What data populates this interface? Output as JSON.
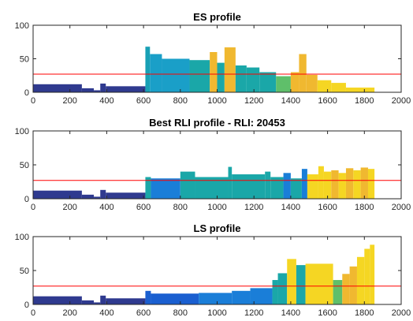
{
  "chart_data": [
    {
      "type": "area",
      "title": "ES profile",
      "xlim": [
        0,
        2000
      ],
      "ylim": [
        0,
        100
      ],
      "xticks": [
        "0",
        "200",
        "400",
        "600",
        "800",
        "1000",
        "1200",
        "1400",
        "1600",
        "1800",
        "2000"
      ],
      "yticks": [
        "0",
        "50",
        "100"
      ],
      "reference_line": {
        "y": 27,
        "color": "#ff0000"
      },
      "bars": [
        {
          "x0": 0,
          "x1": 265,
          "y": 12,
          "color": "#2f3a8f"
        },
        {
          "x0": 265,
          "x1": 330,
          "y": 6,
          "color": "#2f3a8f"
        },
        {
          "x0": 330,
          "x1": 365,
          "y": 3,
          "color": "#2f3a8f"
        },
        {
          "x0": 365,
          "x1": 395,
          "y": 13,
          "color": "#2f3a8f"
        },
        {
          "x0": 395,
          "x1": 610,
          "y": 9,
          "color": "#2f3a8f"
        },
        {
          "x0": 610,
          "x1": 635,
          "y": 68,
          "color": "#18a0b5"
        },
        {
          "x0": 635,
          "x1": 700,
          "y": 57,
          "color": "#1a9fc8"
        },
        {
          "x0": 700,
          "x1": 850,
          "y": 50,
          "color": "#1a9fc8"
        },
        {
          "x0": 850,
          "x1": 960,
          "y": 48,
          "color": "#1aa7a8"
        },
        {
          "x0": 960,
          "x1": 1000,
          "y": 60,
          "color": "#f0b830"
        },
        {
          "x0": 1000,
          "x1": 1040,
          "y": 44,
          "color": "#1aa7a8"
        },
        {
          "x0": 1040,
          "x1": 1100,
          "y": 67,
          "color": "#f0b830"
        },
        {
          "x0": 1100,
          "x1": 1160,
          "y": 40,
          "color": "#1aa7a8"
        },
        {
          "x0": 1160,
          "x1": 1230,
          "y": 37,
          "color": "#1aa7a8"
        },
        {
          "x0": 1230,
          "x1": 1320,
          "y": 30,
          "color": "#1aa7a8"
        },
        {
          "x0": 1320,
          "x1": 1400,
          "y": 24,
          "color": "#5fbf6a"
        },
        {
          "x0": 1400,
          "x1": 1445,
          "y": 30,
          "color": "#f0b830"
        },
        {
          "x0": 1445,
          "x1": 1485,
          "y": 57,
          "color": "#f0b830"
        },
        {
          "x0": 1485,
          "x1": 1545,
          "y": 26,
          "color": "#f0b830"
        },
        {
          "x0": 1545,
          "x1": 1620,
          "y": 18,
          "color": "#f5d623"
        },
        {
          "x0": 1620,
          "x1": 1700,
          "y": 14,
          "color": "#f5d623"
        },
        {
          "x0": 1700,
          "x1": 1855,
          "y": 7,
          "color": "#f5d623"
        }
      ]
    },
    {
      "type": "area",
      "title": "Best RLI profile - RLI: 20453",
      "xlim": [
        0,
        2000
      ],
      "ylim": [
        0,
        100
      ],
      "xticks": [
        "0",
        "200",
        "400",
        "600",
        "800",
        "1000",
        "1200",
        "1400",
        "1600",
        "1800",
        "2000"
      ],
      "yticks": [
        "0",
        "50",
        "100"
      ],
      "reference_line": {
        "y": 27,
        "color": "#ff0000"
      },
      "bars": [
        {
          "x0": 0,
          "x1": 265,
          "y": 12,
          "color": "#2f3a8f"
        },
        {
          "x0": 265,
          "x1": 330,
          "y": 6,
          "color": "#2f3a8f"
        },
        {
          "x0": 330,
          "x1": 365,
          "y": 3,
          "color": "#2f3a8f"
        },
        {
          "x0": 365,
          "x1": 395,
          "y": 13,
          "color": "#2f3a8f"
        },
        {
          "x0": 395,
          "x1": 610,
          "y": 9,
          "color": "#2f3a8f"
        },
        {
          "x0": 610,
          "x1": 640,
          "y": 32,
          "color": "#1aa7a8"
        },
        {
          "x0": 640,
          "x1": 800,
          "y": 30,
          "color": "#1a7ed8"
        },
        {
          "x0": 800,
          "x1": 880,
          "y": 40,
          "color": "#1aa7a8"
        },
        {
          "x0": 880,
          "x1": 1060,
          "y": 32,
          "color": "#1aa7a8"
        },
        {
          "x0": 1060,
          "x1": 1080,
          "y": 47,
          "color": "#1aa7a8"
        },
        {
          "x0": 1080,
          "x1": 1260,
          "y": 36,
          "color": "#1aa7a8"
        },
        {
          "x0": 1260,
          "x1": 1290,
          "y": 40,
          "color": "#1aa7a8"
        },
        {
          "x0": 1290,
          "x1": 1360,
          "y": 32,
          "color": "#1aa7a8"
        },
        {
          "x0": 1360,
          "x1": 1400,
          "y": 38,
          "color": "#1a7ed8"
        },
        {
          "x0": 1400,
          "x1": 1460,
          "y": 30,
          "color": "#1aa7a8"
        },
        {
          "x0": 1460,
          "x1": 1490,
          "y": 44,
          "color": "#1a7ed8"
        },
        {
          "x0": 1490,
          "x1": 1550,
          "y": 36,
          "color": "#f5d623"
        },
        {
          "x0": 1550,
          "x1": 1580,
          "y": 48,
          "color": "#f5d623"
        },
        {
          "x0": 1580,
          "x1": 1620,
          "y": 40,
          "color": "#f5d623"
        },
        {
          "x0": 1620,
          "x1": 1660,
          "y": 42,
          "color": "#f0b830"
        },
        {
          "x0": 1660,
          "x1": 1700,
          "y": 38,
          "color": "#f5d623"
        },
        {
          "x0": 1700,
          "x1": 1740,
          "y": 45,
          "color": "#f0b830"
        },
        {
          "x0": 1740,
          "x1": 1780,
          "y": 42,
          "color": "#f5d623"
        },
        {
          "x0": 1780,
          "x1": 1820,
          "y": 46,
          "color": "#f0b830"
        },
        {
          "x0": 1820,
          "x1": 1855,
          "y": 44,
          "color": "#f5d623"
        }
      ]
    },
    {
      "type": "area",
      "title": "LS profile",
      "xlim": [
        0,
        2000
      ],
      "ylim": [
        0,
        100
      ],
      "xticks": [
        "0",
        "200",
        "400",
        "600",
        "800",
        "1000",
        "1200",
        "1400",
        "1600",
        "1800",
        "2000"
      ],
      "yticks": [
        "0",
        "50",
        "100"
      ],
      "reference_line": {
        "y": 27,
        "color": "#ff0000"
      },
      "bars": [
        {
          "x0": 0,
          "x1": 265,
          "y": 12,
          "color": "#2f3a8f"
        },
        {
          "x0": 265,
          "x1": 330,
          "y": 6,
          "color": "#2f3a8f"
        },
        {
          "x0": 330,
          "x1": 365,
          "y": 3,
          "color": "#2f3a8f"
        },
        {
          "x0": 365,
          "x1": 395,
          "y": 13,
          "color": "#2f3a8f"
        },
        {
          "x0": 395,
          "x1": 610,
          "y": 9,
          "color": "#2f3a8f"
        },
        {
          "x0": 610,
          "x1": 640,
          "y": 20,
          "color": "#1a5fd0"
        },
        {
          "x0": 640,
          "x1": 900,
          "y": 16,
          "color": "#1a5fd0"
        },
        {
          "x0": 900,
          "x1": 1080,
          "y": 17,
          "color": "#1a7ed8"
        },
        {
          "x0": 1080,
          "x1": 1180,
          "y": 20,
          "color": "#1a7ed8"
        },
        {
          "x0": 1180,
          "x1": 1300,
          "y": 24,
          "color": "#1a7ed8"
        },
        {
          "x0": 1300,
          "x1": 1330,
          "y": 36,
          "color": "#1aa7a8"
        },
        {
          "x0": 1330,
          "x1": 1380,
          "y": 46,
          "color": "#1aa7a8"
        },
        {
          "x0": 1380,
          "x1": 1430,
          "y": 67,
          "color": "#f5d623"
        },
        {
          "x0": 1430,
          "x1": 1480,
          "y": 58,
          "color": "#1aa7a8"
        },
        {
          "x0": 1480,
          "x1": 1630,
          "y": 60,
          "color": "#f5d623"
        },
        {
          "x0": 1630,
          "x1": 1680,
          "y": 36,
          "color": "#5fbf6a"
        },
        {
          "x0": 1680,
          "x1": 1720,
          "y": 45,
          "color": "#f0b830"
        },
        {
          "x0": 1720,
          "x1": 1760,
          "y": 56,
          "color": "#f0b830"
        },
        {
          "x0": 1760,
          "x1": 1800,
          "y": 70,
          "color": "#f5d623"
        },
        {
          "x0": 1800,
          "x1": 1830,
          "y": 82,
          "color": "#f5d623"
        },
        {
          "x0": 1830,
          "x1": 1855,
          "y": 88,
          "color": "#f5d623"
        }
      ]
    }
  ]
}
